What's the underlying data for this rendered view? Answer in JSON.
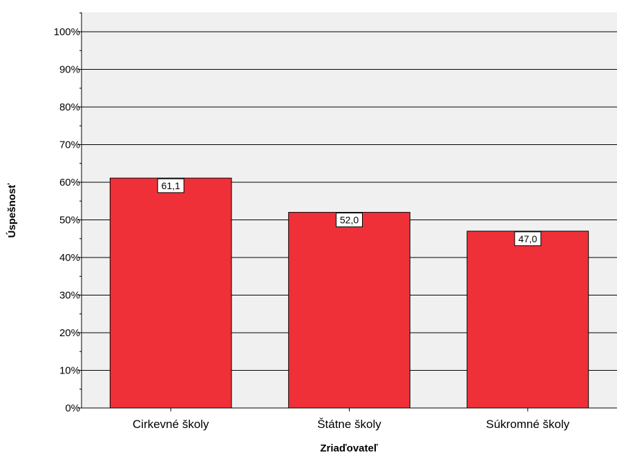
{
  "chart_data": {
    "type": "bar",
    "categories": [
      "Cirkevné školy",
      "Štátne školy",
      "Súkromné školy"
    ],
    "values": [
      61.1,
      52.0,
      47.0
    ],
    "data_labels": [
      "61,1",
      "52,0",
      "47,0"
    ],
    "title": "",
    "xlabel": "Zriaďovateľ",
    "ylabel": "Úspešnosť",
    "ylim": [
      0,
      100
    ],
    "y_ticks": [
      0,
      10,
      20,
      30,
      40,
      50,
      60,
      70,
      80,
      90,
      100
    ],
    "y_tick_labels": [
      "0%",
      "10%",
      "20%",
      "30%",
      "40%",
      "50%",
      "60%",
      "70%",
      "80%",
      "90%",
      "100%"
    ],
    "grid": true,
    "legend": "none",
    "colors": {
      "bar": "#ef3038",
      "plot_background": "#f0f0f0",
      "gridline": "#000000"
    }
  }
}
